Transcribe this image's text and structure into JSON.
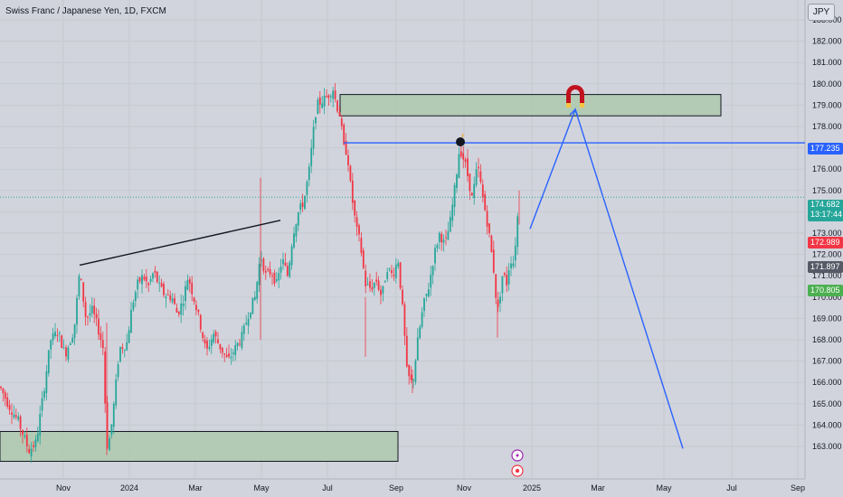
{
  "header": {
    "title": "Swiss Franc / Japanese Yen, 1D, FXCM",
    "currency": "JPY"
  },
  "price_axis": {
    "ticks": [
      "183.000",
      "182.000",
      "181.000",
      "180.000",
      "179.000",
      "178.000",
      "177.000",
      "176.000",
      "175.000",
      "174.000",
      "173.000",
      "172.000",
      "171.000",
      "170.000",
      "169.000",
      "168.000",
      "167.000",
      "166.000",
      "165.000",
      "164.000",
      "163.000"
    ]
  },
  "time_axis": {
    "ticks": [
      "Nov",
      "2024",
      "Mar",
      "May",
      "Jul",
      "Sep",
      "Nov",
      "2025",
      "Mar",
      "May",
      "Jul",
      "Sep"
    ]
  },
  "badges": {
    "last_price": "174.682",
    "countdown": "13:17:44",
    "level": "177.235",
    "red": "172.989",
    "gray": "171.897",
    "green": "170.805"
  },
  "colors": {
    "up": "#26a69a",
    "down": "#f23645",
    "drawing": "#2962ff",
    "zone": "#a8c8a8",
    "background": "#d1d4dc"
  },
  "icons": [
    "magnet-icon",
    "bomb-icon",
    "lightning-icon",
    "target-icon"
  ],
  "chart_data": {
    "type": "candlestick",
    "title": "Swiss Franc / Japanese Yen, 1D, FXCM",
    "x_ticks": [
      "Nov",
      "2024",
      "Mar",
      "May",
      "Jul",
      "Sep",
      "Nov",
      "2025",
      "Mar",
      "May",
      "Jul",
      "Sep"
    ],
    "y_ticks": [
      "183.000",
      "182.000",
      "181.000",
      "180.000",
      "179.000",
      "178.000",
      "177.000",
      "176.000",
      "175.000",
      "174.000",
      "173.000",
      "172.000",
      "171.000",
      "170.000",
      "169.000",
      "168.000",
      "167.000",
      "166.000",
      "165.000",
      "164.000",
      "163.000"
    ],
    "y_range": [
      162.5,
      183.5
    ],
    "path": [
      [
        0,
        165.8
      ],
      [
        10,
        164.9
      ],
      [
        20,
        164.2
      ],
      [
        32,
        162.8
      ],
      [
        40,
        163.2
      ],
      [
        48,
        165.5
      ],
      [
        56,
        168.0
      ],
      [
        64,
        168.4
      ],
      [
        72,
        167.3
      ],
      [
        82,
        168.5
      ],
      [
        88,
        171.2
      ],
      [
        95,
        169.0
      ],
      [
        102,
        169.4
      ],
      [
        108,
        168.6
      ],
      [
        114,
        167.6
      ],
      [
        118,
        163.0
      ],
      [
        122,
        163.5
      ],
      [
        126,
        165.0
      ],
      [
        132,
        167.6
      ],
      [
        140,
        167.8
      ],
      [
        146,
        169.6
      ],
      [
        152,
        170.6
      ],
      [
        158,
        171.0
      ],
      [
        164,
        170.5
      ],
      [
        170,
        171.2
      ],
      [
        176,
        170.5
      ],
      [
        182,
        170.1
      ],
      [
        190,
        170.0
      ],
      [
        196,
        169.2
      ],
      [
        202,
        169.8
      ],
      [
        208,
        171.0
      ],
      [
        214,
        170.0
      ],
      [
        220,
        169.0
      ],
      [
        228,
        167.4
      ],
      [
        236,
        168.3
      ],
      [
        244,
        167.6
      ],
      [
        252,
        167.0
      ],
      [
        260,
        167.6
      ],
      [
        268,
        168.2
      ],
      [
        276,
        169.4
      ],
      [
        282,
        170.0
      ],
      [
        288,
        172.0
      ],
      [
        294,
        171.0
      ],
      [
        300,
        171.2
      ],
      [
        306,
        170.6
      ],
      [
        312,
        171.8
      ],
      [
        318,
        171.0
      ],
      [
        324,
        173.0
      ],
      [
        330,
        174.0
      ],
      [
        336,
        174.5
      ],
      [
        342,
        176.0
      ],
      [
        346,
        177.6
      ],
      [
        350,
        179.0
      ],
      [
        356,
        179.2
      ],
      [
        362,
        179.4
      ],
      [
        368,
        179.8
      ],
      [
        372,
        179.0
      ],
      [
        376,
        178.5
      ],
      [
        380,
        177.0
      ],
      [
        384,
        176.8
      ],
      [
        388,
        175.0
      ],
      [
        394,
        173.2
      ],
      [
        398,
        172.6
      ],
      [
        404,
        170.6
      ],
      [
        410,
        170.4
      ],
      [
        416,
        170.8
      ],
      [
        422,
        170.0
      ],
      [
        428,
        171.4
      ],
      [
        434,
        171.0
      ],
      [
        440,
        171.8
      ],
      [
        446,
        169.0
      ],
      [
        450,
        166.4
      ],
      [
        456,
        165.9
      ],
      [
        462,
        168.0
      ],
      [
        468,
        169.6
      ],
      [
        474,
        170.5
      ],
      [
        480,
        172.0
      ],
      [
        486,
        173.0
      ],
      [
        492,
        172.4
      ],
      [
        498,
        173.6
      ],
      [
        504,
        175.5
      ],
      [
        508,
        177.0
      ],
      [
        514,
        176.3
      ],
      [
        518,
        175.5
      ],
      [
        522,
        174.6
      ],
      [
        528,
        176.2
      ],
      [
        534,
        174.6
      ],
      [
        540,
        173.2
      ],
      [
        546,
        171.2
      ],
      [
        550,
        169.2
      ],
      [
        556,
        171.2
      ],
      [
        560,
        170.6
      ],
      [
        564,
        171.8
      ],
      [
        568,
        171.6
      ],
      [
        574,
        174.7
      ]
    ],
    "zones": [
      {
        "x_from": 376,
        "x_to": 797,
        "top": 179.5,
        "bottom": 178.5
      },
      {
        "x_from": 0,
        "x_to": 440,
        "top": 163.7,
        "bottom": 162.3
      }
    ],
    "trendline": {
      "from": [
        88,
        171.5
      ],
      "to": [
        310,
        173.6
      ]
    },
    "horizontal_level": 177.235,
    "projection": [
      [
        586,
        173.2
      ],
      [
        636,
        178.8
      ],
      [
        755,
        162.9
      ]
    ]
  }
}
